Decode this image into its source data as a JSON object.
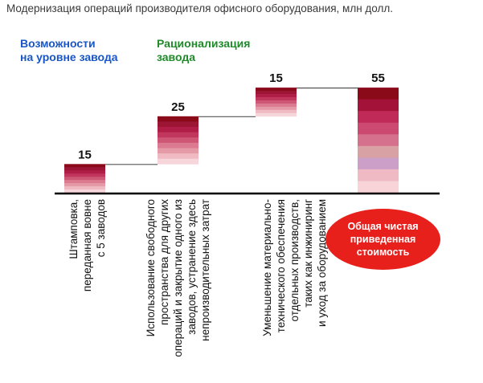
{
  "title": "Модернизация операций производителя офисного оборудования, млн долл.",
  "headings": {
    "blue": [
      "Возможности",
      "на уровне завода"
    ],
    "green": [
      "Рационализация",
      "завода"
    ],
    "blue_color": "#1a56c4",
    "green_color": "#1e8a2a"
  },
  "total_badge": [
    "Общая чистая",
    "приведенная",
    "стоимость"
  ],
  "colors": {
    "badge": "#e8201c",
    "bar_stripes": [
      "#8b0a1a",
      "#9c1535",
      "#b01e48",
      "#c0365c",
      "#cf5776",
      "#db7a90",
      "#e59aa8",
      "#efbac2",
      "#f7d6db"
    ],
    "total_stripes": [
      "#8b0a1a",
      "#a31238",
      "#c02a58",
      "#cc4a72",
      "#d5708d",
      "#d8a1a3",
      "#cc9fc9",
      "#f0bac4",
      "#f8d4d8"
    ]
  },
  "chart_data": {
    "type": "waterfall",
    "unit": "млн долл.",
    "categories": [
      [
        "Штамповка,",
        "переданная вовне",
        "с 5 заводов"
      ],
      [
        "Использование свободного",
        "пространства для других",
        "операций и закрытие одного из",
        "заводов, устранение здесь",
        "непроизводительных затрат"
      ],
      [
        "Уменьшение материально-",
        "технического обеспечения",
        "отдельных производств,",
        "таких как инжиниринг",
        "и уход за оборудованием"
      ],
      [
        "Общая чистая приведенная стоимость"
      ]
    ],
    "values": [
      15,
      25,
      15,
      55
    ],
    "is_total": [
      false,
      false,
      false,
      true
    ],
    "value_labels": [
      "15",
      "25",
      "15",
      "55"
    ]
  }
}
